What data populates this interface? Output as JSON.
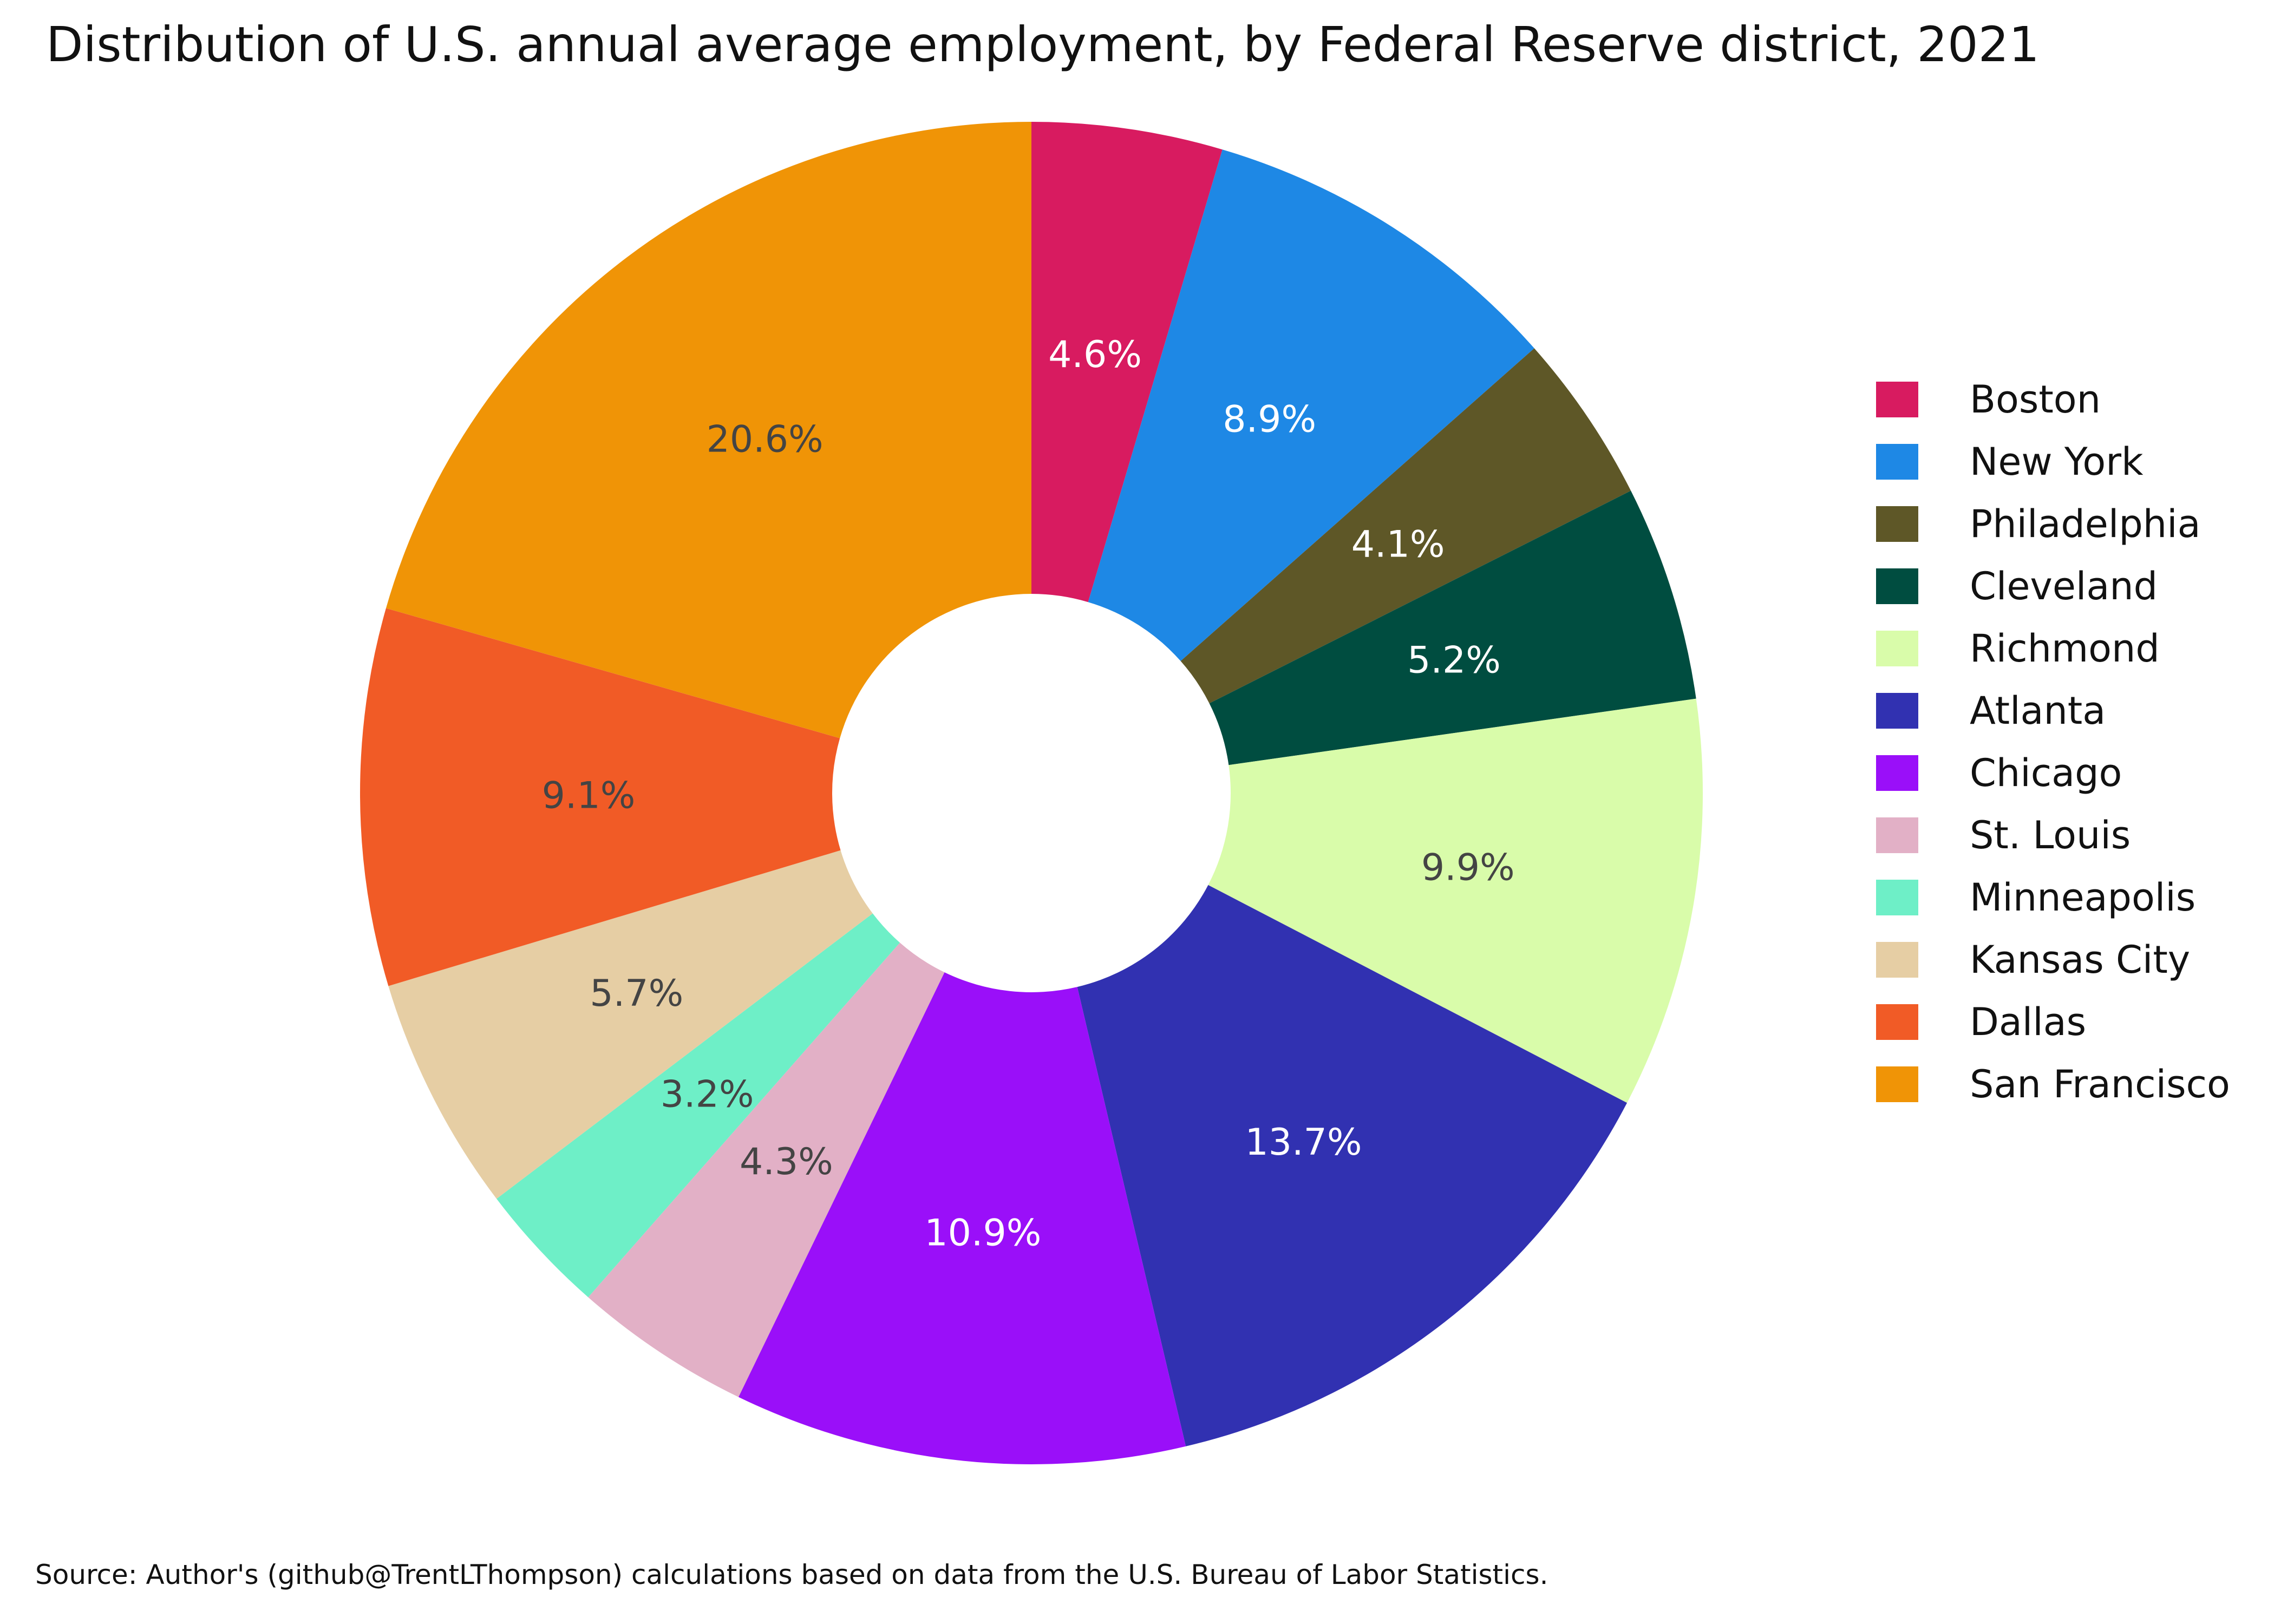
{
  "chart_data": {
    "type": "pie",
    "title": "Distribution of U.S. annual average employment, by Federal Reserve district, 2021",
    "donut": true,
    "direction": "clockwise",
    "start": "top",
    "legend_position": "right",
    "slices": [
      {
        "label": "Boston",
        "value": 4.6,
        "text": "4.6%",
        "color": "#D81B60",
        "text_color": "#ffffff"
      },
      {
        "label": "New York",
        "value": 8.9,
        "text": "8.9%",
        "color": "#1E88E5",
        "text_color": "#ffffff"
      },
      {
        "label": "Philadelphia",
        "value": 4.1,
        "text": "4.1%",
        "color": "#5E5727",
        "text_color": "#ffffff"
      },
      {
        "label": "Cleveland",
        "value": 5.2,
        "text": "5.2%",
        "color": "#004D40",
        "text_color": "#ffffff"
      },
      {
        "label": "Richmond",
        "value": 9.9,
        "text": "9.9%",
        "color": "#D9FCAA",
        "text_color": "#444444"
      },
      {
        "label": "Atlanta",
        "value": 13.7,
        "text": "13.7%",
        "color": "#3131B1",
        "text_color": "#ffffff"
      },
      {
        "label": "Chicago",
        "value": 10.9,
        "text": "10.9%",
        "color": "#9A0FF9",
        "text_color": "#ffffff"
      },
      {
        "label": "St. Louis",
        "value": 4.3,
        "text": "4.3%",
        "color": "#E2B0C6",
        "text_color": "#444444"
      },
      {
        "label": "Minneapolis",
        "value": 3.2,
        "text": "3.2%",
        "color": "#6EEFC7",
        "text_color": "#444444"
      },
      {
        "label": "Kansas City",
        "value": 5.7,
        "text": "5.7%",
        "color": "#E6CEA4",
        "text_color": "#444444"
      },
      {
        "label": "Dallas",
        "value": 9.1,
        "text": "9.1%",
        "color": "#F15B26",
        "text_color": "#444444"
      },
      {
        "label": "San Francisco",
        "value": 20.6,
        "text": "20.6%",
        "color": "#F09406",
        "text_color": "#444444"
      }
    ],
    "source": "Source: Author's (github@TrentLThompson) calculations based on data from the U.S. Bureau of Labor Statistics."
  }
}
